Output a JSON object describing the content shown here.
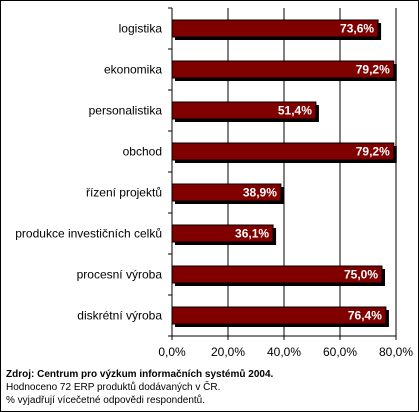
{
  "chart_data": {
    "type": "bar",
    "orientation": "horizontal",
    "categories": [
      "logistika",
      "ekonomika",
      "personalistika",
      "obchod",
      "řízení projektů",
      "produkce investičních celků",
      "procesní výroba",
      "diskrétní výroba"
    ],
    "values": [
      73.6,
      79.2,
      51.4,
      79.2,
      38.9,
      36.1,
      75.0,
      76.4
    ],
    "data_labels": [
      "73,6%",
      "79,2%",
      "51,4%",
      "79,2%",
      "38,9%",
      "36,1%",
      "75,0%",
      "76,4%"
    ],
    "xlim": [
      0,
      80
    ],
    "x_ticks": [
      0,
      20,
      40,
      60,
      80
    ],
    "x_tick_labels": [
      "0,0%",
      "20,0%",
      "40,0%",
      "60,0%",
      "80,0%"
    ],
    "grid": "vertical",
    "bar_color": "#800000",
    "bar_shadow_color": "#000000",
    "title": "",
    "xlabel": "",
    "ylabel": ""
  },
  "notes": {
    "source": "Zdroj: Centrum pro výzkum informačních systémů 2004.",
    "line2": "Hodnoceno 72 ERP produktů dodávaných v ČR.",
    "line3": "% vyjadřují vícečetné odpovědi respondentů."
  }
}
